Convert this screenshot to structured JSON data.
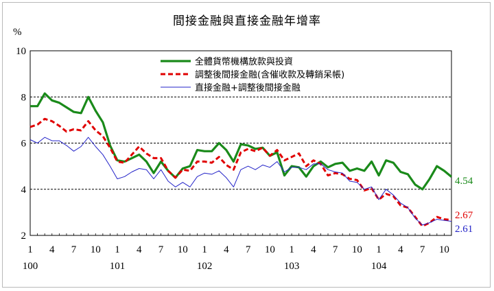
{
  "chart_data": {
    "type": "line",
    "title": "間接金融與直接金融年增率",
    "ylabel": "%",
    "ylim": [
      2,
      10
    ],
    "yticks": [
      2,
      4,
      6,
      8,
      10
    ],
    "grid": "dashed horizontal at 4, 6, 8",
    "legend_position": "top-center",
    "x_tick_labels": [
      "1",
      "4",
      "7",
      "10",
      "1",
      "4",
      "7",
      "10",
      "1",
      "4",
      "7",
      "10",
      "1",
      "4",
      "7",
      "10",
      "1",
      "4",
      "7",
      "10"
    ],
    "x_tick_index": [
      0,
      3,
      6,
      9,
      12,
      15,
      18,
      21,
      24,
      27,
      30,
      33,
      36,
      39,
      42,
      45,
      48,
      51,
      54,
      57
    ],
    "year_labels": [
      {
        "label": "100",
        "index": 0
      },
      {
        "label": "101",
        "index": 12
      },
      {
        "label": "102",
        "index": 24
      },
      {
        "label": "103",
        "index": 36
      },
      {
        "label": "104",
        "index": 48
      }
    ],
    "series": [
      {
        "name": "全體貨幣機構放款與投資",
        "color": "#1a8a1a",
        "style": "solid-thick",
        "end_label": "4.54",
        "values": [
          7.6,
          7.6,
          8.15,
          7.85,
          7.75,
          7.55,
          7.35,
          7.3,
          8.0,
          7.4,
          6.9,
          5.9,
          5.25,
          5.2,
          5.35,
          5.5,
          5.2,
          4.7,
          5.2,
          4.8,
          4.5,
          4.9,
          5.0,
          5.7,
          5.65,
          5.65,
          6.0,
          5.7,
          5.2,
          5.95,
          5.9,
          5.75,
          5.8,
          5.45,
          5.6,
          4.6,
          5.0,
          4.95,
          4.55,
          5.0,
          5.2,
          4.95,
          5.1,
          5.15,
          4.8,
          4.9,
          4.8,
          5.2,
          4.6,
          5.25,
          5.15,
          4.75,
          4.65,
          4.2,
          4.0,
          4.45,
          5.0,
          4.8,
          4.54
        ]
      },
      {
        "name": "調整後間接金融(含催收款及轉銷呆帳)",
        "color": "#e00000",
        "style": "dashed",
        "end_label": "2.67",
        "values": [
          6.7,
          6.8,
          7.05,
          6.95,
          6.75,
          6.5,
          6.6,
          6.55,
          6.95,
          6.55,
          6.3,
          5.8,
          5.2,
          5.15,
          5.5,
          5.85,
          5.55,
          5.35,
          5.35,
          4.8,
          4.5,
          4.85,
          4.8,
          5.2,
          5.2,
          5.15,
          5.4,
          5.05,
          4.85,
          5.6,
          5.75,
          5.65,
          5.8,
          5.45,
          5.7,
          5.25,
          5.4,
          5.55,
          5.0,
          5.25,
          5.1,
          4.6,
          4.7,
          4.65,
          4.45,
          4.4,
          3.95,
          4.05,
          3.55,
          3.8,
          3.7,
          3.3,
          3.2,
          2.8,
          2.4,
          2.55,
          2.8,
          2.7,
          2.67
        ]
      },
      {
        "name": "直接金融+調整後間接金融",
        "color": "#2323c8",
        "style": "thin",
        "end_label": "2.61",
        "values": [
          6.15,
          6.0,
          6.25,
          6.1,
          6.1,
          5.9,
          5.65,
          5.85,
          6.25,
          5.85,
          5.5,
          5.0,
          4.45,
          4.55,
          4.75,
          4.9,
          4.85,
          4.45,
          4.85,
          4.35,
          4.1,
          4.3,
          4.1,
          4.55,
          4.7,
          4.65,
          4.8,
          4.5,
          4.1,
          4.85,
          5.0,
          4.85,
          5.05,
          4.95,
          5.2,
          4.75,
          4.95,
          4.95,
          4.85,
          5.1,
          5.1,
          4.85,
          4.75,
          4.7,
          4.35,
          4.3,
          4.0,
          4.1,
          3.55,
          4.0,
          3.75,
          3.4,
          3.2,
          2.75,
          2.45,
          2.55,
          2.7,
          2.65,
          2.61
        ]
      }
    ]
  }
}
